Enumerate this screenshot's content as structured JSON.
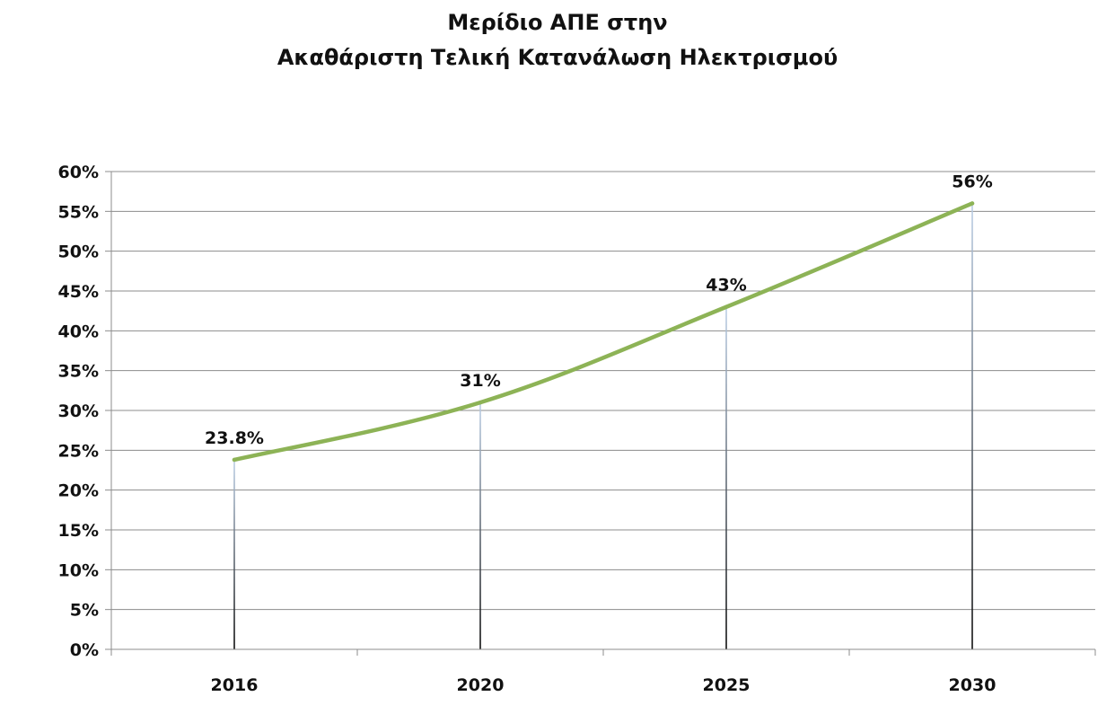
{
  "chart_data": {
    "type": "line",
    "title_lines": [
      "Μερίδιο ΑΠΕ στην",
      "Ακαθάριστη Τελική Κατανάλωση Ηλεκτρισμού"
    ],
    "categories": [
      "2016",
      "2020",
      "2025",
      "2030"
    ],
    "values": [
      23.8,
      31,
      43,
      56
    ],
    "data_labels": [
      "23.8%",
      "31%",
      "43%",
      "56%"
    ],
    "y_ticks": [
      "0%",
      "5%",
      "10%",
      "15%",
      "20%",
      "25%",
      "30%",
      "35%",
      "40%",
      "45%",
      "50%",
      "55%",
      "60%"
    ],
    "ylim": [
      0,
      60
    ],
    "y_unit": "%",
    "grid": true,
    "drop_lines": true,
    "legend": "none",
    "colors": {
      "line": "#8db356",
      "grid": "#8c8c8c",
      "axis": "#8c8c8c",
      "drop_line_top": "#b9cde5",
      "drop_line_bottom": "#000000"
    }
  }
}
